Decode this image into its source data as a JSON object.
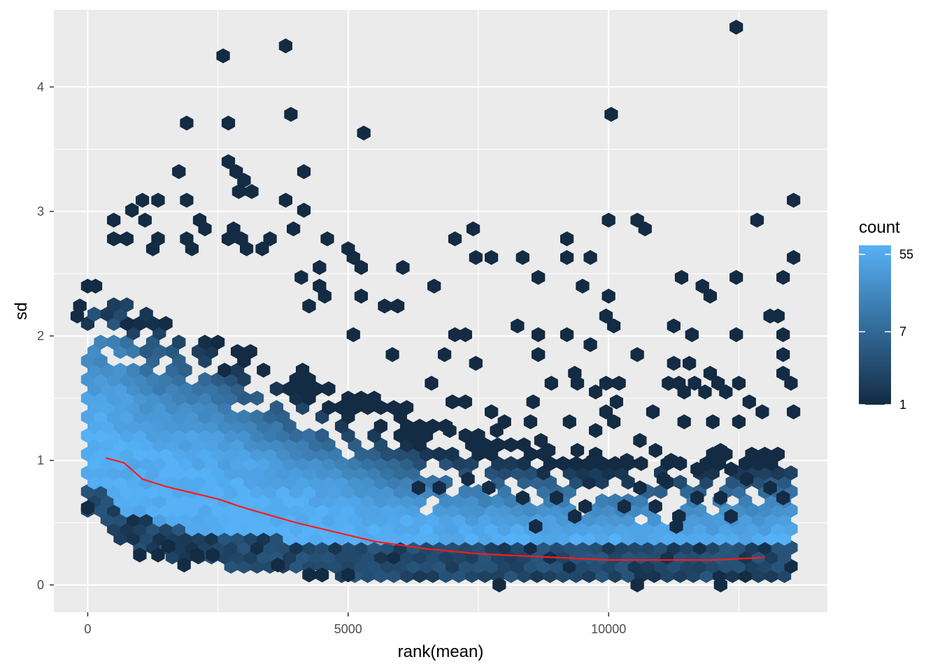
{
  "chart_data": {
    "type": "hexbin",
    "xlabel": "rank(mean)",
    "ylabel": "sd",
    "xlim": [
      -650,
      14200
    ],
    "ylim": [
      -0.22,
      4.62
    ],
    "x_ticks": [
      0,
      5000,
      10000
    ],
    "x_tick_labels": [
      "0",
      "5000",
      "10000"
    ],
    "y_ticks": [
      0,
      1,
      2,
      3,
      4
    ],
    "y_tick_labels": [
      "0",
      "1",
      "2",
      "3",
      "4"
    ],
    "grid": true,
    "legend": {
      "title": "count",
      "position": "right",
      "scale": "log",
      "breaks": [
        55,
        7,
        1
      ],
      "break_labels": [
        "55",
        "7",
        "1"
      ],
      "low_color": "#132B43",
      "high_color": "#56B1F7",
      "max": 70
    },
    "hex_bin_width": 250,
    "hex_bin_height": 0.1,
    "dense_band": {
      "x_range": [
        0,
        13600
      ],
      "lower_sd": [
        [
          0,
          0.62
        ],
        [
          300,
          0.5
        ],
        [
          600,
          0.38
        ],
        [
          1000,
          0.3
        ],
        [
          2000,
          0.2
        ],
        [
          3000,
          0.15
        ],
        [
          5000,
          0.09
        ],
        [
          8000,
          0.07
        ],
        [
          10000,
          0.07
        ],
        [
          13600,
          0.07
        ]
      ],
      "upper_sd": [
        [
          0,
          2.15
        ],
        [
          600,
          2.3
        ],
        [
          1000,
          2.25
        ],
        [
          2000,
          2.05
        ],
        [
          3000,
          1.9
        ],
        [
          4000,
          1.75
        ],
        [
          5000,
          1.6
        ],
        [
          6000,
          1.45
        ],
        [
          7000,
          1.3
        ],
        [
          8000,
          1.15
        ],
        [
          9000,
          1.1
        ],
        [
          10000,
          1.05
        ],
        [
          11000,
          1.0
        ],
        [
          13600,
          1.15
        ]
      ]
    },
    "trend_line": {
      "name": "trend",
      "color": "#FF1A1A",
      "x": [
        350,
        700,
        1050,
        1500,
        2000,
        2500,
        3000,
        3500,
        4000,
        4500,
        5000,
        5500,
        6000,
        6500,
        7000,
        7500,
        8000,
        8500,
        9000,
        9500,
        10000,
        10500,
        11000,
        11500,
        12000,
        12500,
        13000
      ],
      "y": [
        1.02,
        0.98,
        0.85,
        0.79,
        0.74,
        0.69,
        0.62,
        0.56,
        0.5,
        0.45,
        0.4,
        0.35,
        0.32,
        0.29,
        0.27,
        0.25,
        0.24,
        0.23,
        0.22,
        0.21,
        0.2,
        0.2,
        0.2,
        0.2,
        0.2,
        0.21,
        0.22
      ]
    },
    "outliers": [
      [
        12450,
        4.48
      ],
      [
        3800,
        4.33
      ],
      [
        2600,
        4.25
      ],
      [
        3900,
        3.78
      ],
      [
        10050,
        3.78
      ],
      [
        1900,
        3.71
      ],
      [
        2700,
        3.71
      ],
      [
        5300,
        3.63
      ],
      [
        1750,
        3.32
      ],
      [
        4150,
        3.32
      ],
      [
        2700,
        3.4
      ],
      [
        2850,
        3.32
      ],
      [
        3000,
        3.25
      ],
      [
        2900,
        3.16
      ],
      [
        3150,
        3.16
      ],
      [
        1900,
        3.09
      ],
      [
        3800,
        3.09
      ],
      [
        1050,
        3.09
      ],
      [
        1350,
        3.09
      ],
      [
        850,
        3.01
      ],
      [
        4150,
        3.01
      ],
      [
        13550,
        3.09
      ],
      [
        10000,
        2.93
      ],
      [
        10550,
        2.93
      ],
      [
        10700,
        2.86
      ],
      [
        12850,
        2.93
      ],
      [
        500,
        2.93
      ],
      [
        1100,
        2.93
      ],
      [
        2150,
        2.93
      ],
      [
        2250,
        2.86
      ],
      [
        2800,
        2.86
      ],
      [
        3950,
        2.86
      ],
      [
        7400,
        2.86
      ],
      [
        500,
        2.78
      ],
      [
        750,
        2.78
      ],
      [
        1350,
        2.78
      ],
      [
        1900,
        2.78
      ],
      [
        2700,
        2.78
      ],
      [
        2950,
        2.78
      ],
      [
        3500,
        2.78
      ],
      [
        4600,
        2.78
      ],
      [
        7050,
        2.78
      ],
      [
        9200,
        2.78
      ],
      [
        1250,
        2.7
      ],
      [
        2000,
        2.7
      ],
      [
        3050,
        2.7
      ],
      [
        3350,
        2.7
      ],
      [
        5000,
        2.7
      ],
      [
        5100,
        2.63
      ],
      [
        7450,
        2.63
      ],
      [
        7750,
        2.63
      ],
      [
        8350,
        2.63
      ],
      [
        9200,
        2.63
      ],
      [
        9650,
        2.63
      ],
      [
        13550,
        2.63
      ],
      [
        4450,
        2.55
      ],
      [
        5250,
        2.55
      ],
      [
        6050,
        2.55
      ],
      [
        4100,
        2.47
      ],
      [
        8650,
        2.47
      ],
      [
        11400,
        2.47
      ],
      [
        12450,
        2.47
      ],
      [
        13350,
        2.47
      ],
      [
        4450,
        2.4
      ],
      [
        6650,
        2.4
      ],
      [
        9500,
        2.4
      ],
      [
        11800,
        2.4
      ],
      [
        11950,
        2.32
      ],
      [
        10000,
        2.32
      ],
      [
        4250,
        2.24
      ],
      [
        4550,
        2.32
      ],
      [
        5700,
        2.24
      ],
      [
        5950,
        2.24
      ],
      [
        5250,
        2.32
      ],
      [
        9950,
        2.16
      ],
      [
        13100,
        2.16
      ],
      [
        13250,
        2.16
      ],
      [
        10100,
        2.08
      ],
      [
        11250,
        2.08
      ],
      [
        8250,
        2.08
      ],
      [
        5100,
        2.01
      ],
      [
        7050,
        2.01
      ],
      [
        7250,
        2.01
      ],
      [
        8650,
        2.01
      ],
      [
        9200,
        2.01
      ],
      [
        11600,
        2.01
      ],
      [
        12450,
        2.01
      ],
      [
        13350,
        2.01
      ],
      [
        9650,
        1.93
      ],
      [
        5850,
        1.85
      ],
      [
        6850,
        1.85
      ],
      [
        8650,
        1.85
      ],
      [
        10550,
        1.85
      ],
      [
        13350,
        1.85
      ],
      [
        7450,
        1.78
      ],
      [
        11250,
        1.78
      ],
      [
        11550,
        1.78
      ],
      [
        13350,
        1.7
      ],
      [
        11950,
        1.7
      ],
      [
        9350,
        1.7
      ],
      [
        6600,
        1.62
      ],
      [
        8900,
        1.62
      ],
      [
        9400,
        1.62
      ],
      [
        9950,
        1.62
      ],
      [
        10200,
        1.62
      ],
      [
        11150,
        1.62
      ],
      [
        11350,
        1.62
      ],
      [
        11650,
        1.62
      ],
      [
        12100,
        1.62
      ],
      [
        12500,
        1.62
      ],
      [
        13500,
        1.62
      ],
      [
        9750,
        1.55
      ],
      [
        11450,
        1.55
      ],
      [
        11850,
        1.55
      ],
      [
        12250,
        1.55
      ],
      [
        10150,
        1.47
      ],
      [
        12700,
        1.47
      ],
      [
        8550,
        1.47
      ],
      [
        7000,
        1.47
      ],
      [
        7250,
        1.47
      ],
      [
        10850,
        1.39
      ],
      [
        13550,
        1.39
      ],
      [
        12950,
        1.39
      ],
      [
        9950,
        1.39
      ],
      [
        9250,
        1.31
      ],
      [
        9750,
        1.24
      ],
      [
        10100,
        1.31
      ],
      [
        11450,
        1.31
      ],
      [
        12000,
        1.31
      ],
      [
        12500,
        1.31
      ],
      [
        7750,
        1.39
      ],
      [
        8000,
        1.31
      ],
      [
        8500,
        1.31
      ],
      [
        6950,
        1.24
      ],
      [
        7850,
        1.24
      ],
      [
        8700,
        1.16
      ],
      [
        10600,
        1.16
      ],
      [
        10900,
        1.08
      ],
      [
        12150,
        1.08
      ],
      [
        8850,
        1.08
      ],
      [
        9400,
        1.08
      ],
      [
        9700,
        1.0
      ],
      [
        10350,
        1.0
      ],
      [
        11200,
        1.0
      ],
      [
        11700,
        0.93
      ],
      [
        12350,
        0.93
      ],
      [
        11050,
        0.85
      ],
      [
        12650,
        0.85
      ],
      [
        10600,
        0.78
      ],
      [
        11700,
        0.7
      ],
      [
        12150,
        0.7
      ],
      [
        13100,
        0.78
      ],
      [
        13350,
        0.7
      ],
      [
        6350,
        0.78
      ],
      [
        6750,
        0.78
      ],
      [
        7300,
        0.85
      ],
      [
        7700,
        0.78
      ],
      [
        8350,
        0.7
      ],
      [
        9000,
        0.7
      ],
      [
        9550,
        0.63
      ],
      [
        10300,
        0.63
      ],
      [
        10900,
        0.63
      ],
      [
        11350,
        0.55
      ],
      [
        12350,
        0.55
      ],
      [
        9350,
        0.55
      ],
      [
        8600,
        0.47
      ],
      [
        11300,
        0.47
      ],
      [
        7900,
        -0.0
      ],
      [
        10550,
        -0.0
      ],
      [
        12150,
        -0.0
      ],
      [
        1850,
        0.16
      ],
      [
        1000,
        0.24
      ],
      [
        1350,
        0.24
      ],
      [
        1550,
        0.31
      ],
      [
        2400,
        0.24
      ],
      [
        3650,
        0.16
      ],
      [
        4250,
        0.08
      ],
      [
        4500,
        0.08
      ],
      [
        5000,
        0.08
      ],
      [
        2100,
        0.24
      ],
      [
        0,
        0.62
      ],
      [
        -200,
        2.16
      ],
      [
        -150,
        2.24
      ],
      [
        0,
        2.4
      ],
      [
        150,
        2.4
      ]
    ],
    "holes": [
      [
        6550,
        0.63
      ],
      [
        7050,
        0.78
      ],
      [
        4950,
        1.08
      ],
      [
        5850,
        1.16
      ],
      [
        7550,
        0.93
      ],
      [
        5250,
        1.31
      ],
      [
        3250,
        1.62
      ],
      [
        4450,
        1.47
      ],
      [
        2100,
        2.01
      ],
      [
        2650,
        2.16
      ],
      [
        3600,
        1.93
      ],
      [
        1500,
        2.16
      ],
      [
        2450,
        1.78
      ],
      [
        3800,
        1.47
      ]
    ]
  }
}
